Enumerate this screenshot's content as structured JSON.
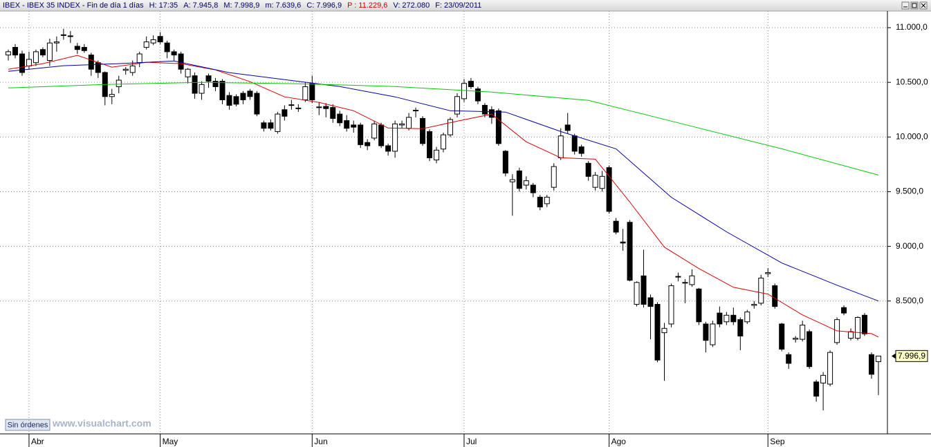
{
  "chart_data": {
    "type": "candlestick",
    "info": [
      "IBEX - IBEX 35 INDEX - Fin de día 1 días",
      "H: 17:35",
      "A: 7.945,8",
      "M: 7.998,9",
      "m: 7.639,6",
      "C: 7.996,9",
      "P : 11.229,6",
      "V: 272.080",
      "F: 23/09/2011"
    ],
    "info_colors": [
      "#000066",
      "#000066",
      "#000066",
      "#000066",
      "#000066",
      "#000066",
      "#cc0000",
      "#000066",
      "#000066"
    ],
    "button": "Sin órdenes",
    "watermark": "www.visualchart.com",
    "ylim": [
      7285,
      11152
    ],
    "yticks": [
      {
        "value": 8500,
        "label": "8.500,0"
      },
      {
        "value": 9000,
        "label": "9.000,0"
      },
      {
        "value": 9500,
        "label": "9.500,0"
      },
      {
        "value": 10000,
        "label": "10.000,0"
      },
      {
        "value": 10500,
        "label": "10.500,0"
      },
      {
        "value": 11000,
        "label": "11.000,0"
      }
    ],
    "grid": true,
    "last_label": {
      "value": 7996.9,
      "label": "7.996,9"
    },
    "categories": [
      null,
      null,
      null,
      "Abr",
      null,
      null,
      null,
      null,
      null,
      null,
      null,
      null,
      null,
      null,
      null,
      null,
      null,
      null,
      null,
      null,
      null,
      null,
      "May",
      null,
      null,
      null,
      null,
      null,
      null,
      null,
      null,
      null,
      null,
      null,
      null,
      null,
      null,
      null,
      null,
      null,
      null,
      null,
      null,
      null,
      "Jun",
      null,
      null,
      null,
      null,
      null,
      null,
      null,
      null,
      null,
      null,
      null,
      null,
      null,
      null,
      null,
      null,
      null,
      null,
      null,
      null,
      null,
      "Jul",
      null,
      null,
      null,
      null,
      null,
      null,
      null,
      null,
      null,
      null,
      null,
      null,
      null,
      null,
      null,
      null,
      null,
      null,
      null,
      null,
      "Ago",
      null,
      null,
      null,
      null,
      null,
      null,
      null,
      null,
      null,
      null,
      null,
      null,
      null,
      null,
      null,
      null,
      null,
      null,
      null,
      null,
      null,
      null,
      "Sep",
      null,
      null,
      null,
      null,
      null,
      null,
      null,
      null,
      null,
      null,
      null,
      null,
      null,
      null,
      null,
      null
    ],
    "up_color": "#ffffff",
    "down_color": "#000000",
    "open": [
      10750,
      10820,
      10760,
      10650,
      10680,
      10800,
      10700,
      10860,
      10930,
      10920,
      10830,
      10820,
      10750,
      10680,
      10590,
      10370,
      10460,
      10610,
      10590,
      10680,
      10820,
      10860,
      10920,
      10860,
      10780,
      10760,
      10550,
      10560,
      10400,
      10560,
      10510,
      10510,
      10380,
      10370,
      10400,
      10420,
      10400,
      10130,
      10130,
      10050,
      10250,
      10290,
      10260,
      10340,
      10490,
      10270,
      10280,
      10270,
      10210,
      10150,
      10110,
      10110,
      9950,
      9990,
      10110,
      9920,
      9870,
      10110,
      10080,
      10240,
      10170,
      10050,
      9790,
      9890,
      10020,
      10210,
      10350,
      10510,
      10440,
      10290,
      10250,
      10240,
      9870,
      9590,
      9690,
      9560,
      9560,
      9450,
      9390,
      9540,
      9810,
      10110,
      10010,
      9910,
      9760,
      9540,
      9530,
      9720,
      9230,
      9040,
      9220,
      8470,
      8730,
      8530,
      8470,
      8210,
      8290,
      8720,
      8670,
      8650,
      8610,
      8290,
      8100,
      8390,
      8310,
      8370,
      8330,
      8310,
      8460,
      8480,
      8750,
      8640,
      8290,
      8010,
      8150,
      8150,
      8220,
      7760,
      7750,
      7740,
      8120,
      8440,
      8160,
      8160,
      8370,
      8010,
      7945.8
    ],
    "high": [
      10800,
      10850,
      10790,
      10780,
      10800,
      10820,
      10900,
      10920,
      10990,
      10970,
      10860,
      10850,
      10770,
      10700,
      10600,
      10440,
      10560,
      10640,
      10700,
      10780,
      10920,
      10930,
      10960,
      10880,
      10800,
      10780,
      10630,
      10590,
      10510,
      10580,
      10540,
      10530,
      10410,
      10390,
      10420,
      10440,
      10420,
      10150,
      10160,
      10230,
      10290,
      10340,
      10300,
      10500,
      10560,
      10320,
      10310,
      10300,
      10240,
      10200,
      10150,
      10130,
      9980,
      10150,
      10130,
      9940,
      10150,
      10150,
      10220,
      10270,
      10190,
      10070,
      9910,
      10040,
      10180,
      10400,
      10530,
      10540,
      10460,
      10310,
      10280,
      10260,
      9880,
      9660,
      9720,
      9640,
      9580,
      9470,
      9470,
      9760,
      10080,
      10220,
      10030,
      9930,
      9780,
      9680,
      9690,
      9740,
      9260,
      9160,
      9240,
      8680,
      8970,
      8560,
      8490,
      8300,
      8660,
      8760,
      8700,
      8790,
      8620,
      8310,
      8320,
      8450,
      8400,
      8440,
      8350,
      8420,
      8500,
      8740,
      8800,
      8660,
      8300,
      8030,
      8180,
      8320,
      8240,
      7780,
      7850,
      8050,
      8350,
      8460,
      8250,
      8360,
      8390,
      8030,
      7998.9
    ],
    "low": [
      10700,
      10720,
      10560,
      10620,
      10650,
      10730,
      10650,
      10780,
      10890,
      10860,
      10760,
      10770,
      10560,
      10540,
      10290,
      10300,
      10400,
      10570,
      10560,
      10640,
      10800,
      10840,
      10850,
      10720,
      10700,
      10580,
      10490,
      10350,
      10340,
      10450,
      10420,
      10300,
      10250,
      10280,
      10300,
      10340,
      10190,
      10050,
      10060,
      10030,
      10150,
      10250,
      10230,
      10320,
      10310,
      10200,
      10180,
      10130,
      10100,
      10050,
      10040,
      9900,
      9880,
      9970,
      9900,
      9830,
      9810,
      10080,
      10060,
      10180,
      9920,
      9780,
      9760,
      9860,
      10000,
      10180,
      10320,
      10440,
      10300,
      10180,
      10120,
      9920,
      9640,
      9280,
      9500,
      9520,
      9450,
      9330,
      9360,
      9510,
      9790,
      10030,
      9840,
      9820,
      9600,
      9510,
      9500,
      9300,
      9110,
      8960,
      8680,
      8450,
      8440,
      8150,
      7940,
      7770,
      8260,
      8680,
      8480,
      8630,
      8280,
      8030,
      8080,
      8260,
      8280,
      8280,
      8050,
      8290,
      8430,
      8460,
      8720,
      8430,
      8040,
      7880,
      8120,
      8130,
      7880,
      7580,
      7500,
      7720,
      8100,
      8370,
      8140,
      8140,
      8180,
      7790,
      7639.6
    ],
    "close": [
      10780,
      10750,
      10590,
      10710,
      10780,
      10750,
      10860,
      10870,
      10935,
      10925,
      10800,
      10790,
      10620,
      10590,
      10370,
      10390,
      10520,
      10620,
      10650,
      10760,
      10870,
      10890,
      10870,
      10780,
      10750,
      10620,
      10620,
      10400,
      10480,
      10510,
      10460,
      10340,
      10290,
      10300,
      10340,
      10370,
      10210,
      10080,
      10080,
      10210,
      10190,
      10295,
      10265,
      10460,
      10340,
      10275,
      10260,
      10170,
      10130,
      10080,
      10090,
      9930,
      9920,
      10120,
      9920,
      9870,
      10120,
      10120,
      10180,
      10245,
      9940,
      9810,
      9880,
      10020,
      10160,
      10370,
      10490,
      10460,
      10330,
      10210,
      10180,
      9940,
      9670,
      9610,
      9530,
      9600,
      9490,
      9360,
      9450,
      9730,
      10010,
      10060,
      9870,
      9850,
      9640,
      9650,
      9640,
      9320,
      9130,
      9030,
      8690,
      8670,
      8470,
      8450,
      7960,
      8250,
      8640,
      8725,
      8670,
      8730,
      8310,
      8140,
      8290,
      8290,
      8370,
      8310,
      8180,
      8400,
      8470,
      8710,
      8760,
      8450,
      8060,
      7930,
      8160,
      8280,
      7900,
      7630,
      7820,
      8030,
      8330,
      8390,
      8220,
      8350,
      8200,
      7830,
      7996.9
    ],
    "series": [
      {
        "color": "#dd0000",
        "x": [
          0,
          5,
          10,
          15,
          20,
          25,
          30,
          35,
          40,
          45,
          50,
          55,
          60,
          65,
          70,
          75,
          80,
          85,
          90,
          95,
          100,
          105,
          110,
          115,
          120,
          125,
          126
        ],
        "values": [
          10620,
          10671,
          10747,
          10639,
          10684,
          10671,
          10614,
          10506,
          10367,
          10316,
          10240,
          10082,
          10076,
          10145,
          10209,
          9956,
          9810,
          9797,
          9405,
          8993,
          8797,
          8626,
          8563,
          8373,
          8227,
          8202,
          8170
        ]
      },
      {
        "color": "#0000aa",
        "x": [
          0,
          8,
          16,
          24,
          32,
          40,
          48,
          56,
          64,
          72,
          80,
          88,
          96,
          104,
          112,
          120,
          126
        ],
        "values": [
          10601,
          10652,
          10671,
          10696,
          10589,
          10525,
          10462,
          10367,
          10240,
          10228,
          10050,
          9892,
          9449,
          9133,
          8848,
          8645,
          8500
        ]
      },
      {
        "color": "#00cc00",
        "x": [
          0,
          14,
          28,
          42,
          56,
          70,
          84,
          98,
          112,
          126
        ],
        "values": [
          10449,
          10481,
          10500,
          10487,
          10462,
          10411,
          10335,
          10114,
          9892,
          9652
        ]
      }
    ]
  }
}
